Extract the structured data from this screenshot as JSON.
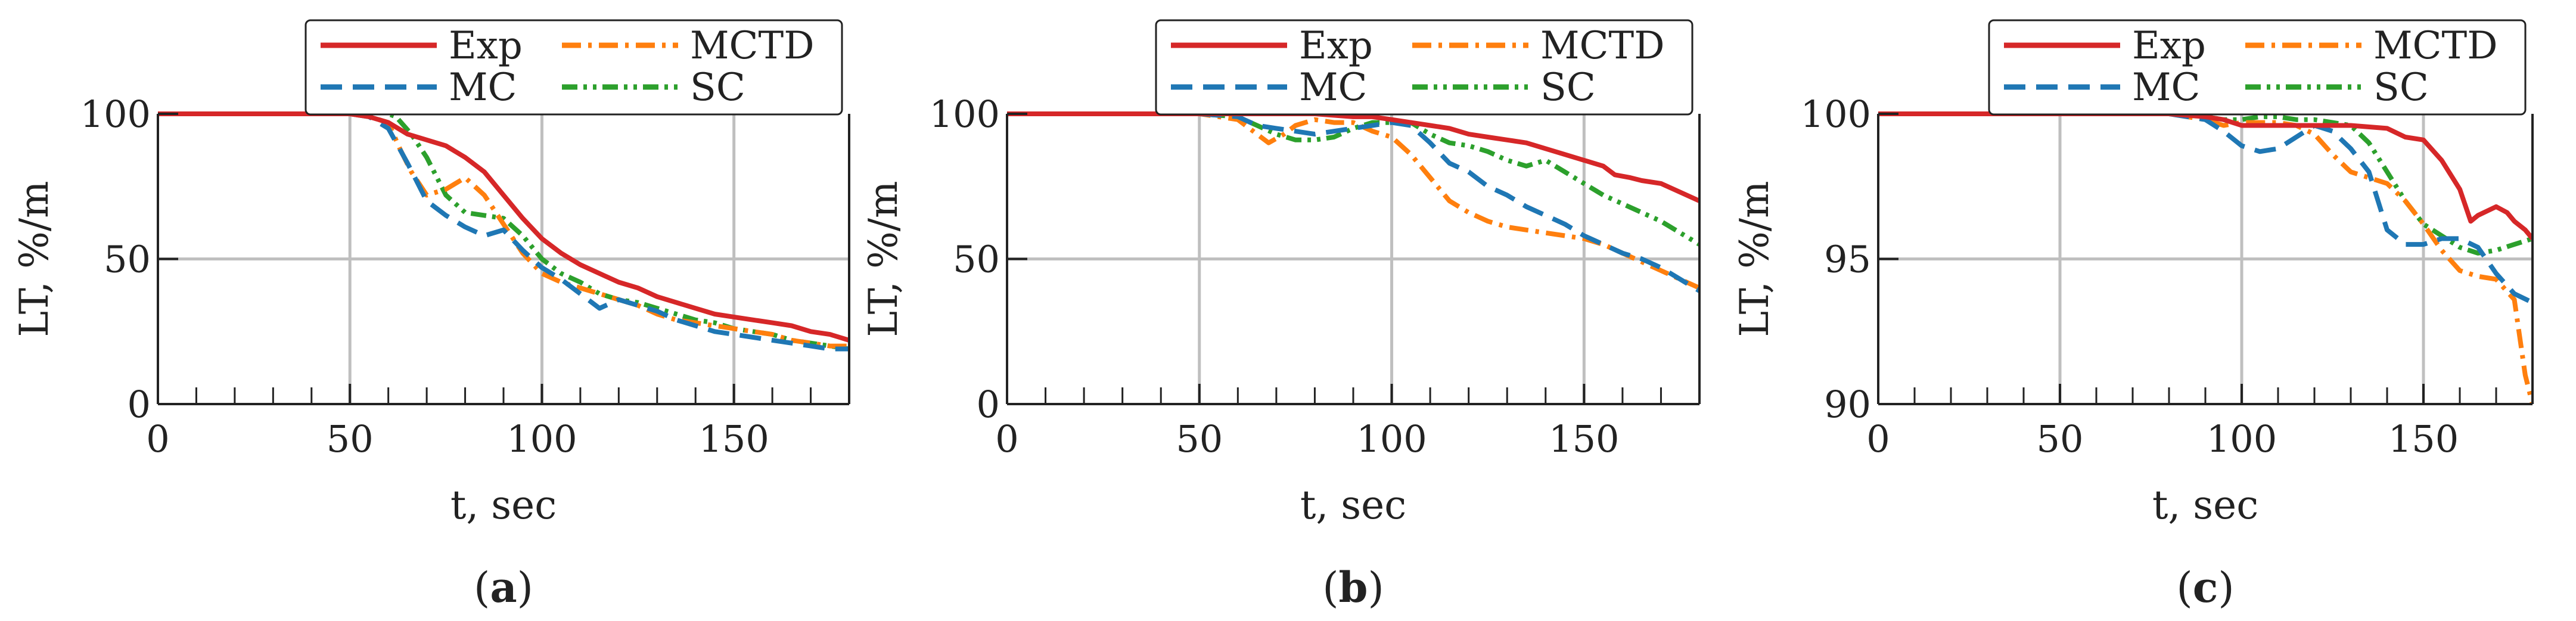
{
  "series_styles": {
    "Exp": {
      "color": "#d62728",
      "dash": "none"
    },
    "MC": {
      "color": "#1f77b4",
      "dash": "36,18"
    },
    "MCTD": {
      "color": "#ff7f0e",
      "dash": "32,12,6,12"
    },
    "SC": {
      "color": "#2ca02c",
      "dash": "26,10,6,10,6,10"
    }
  },
  "chart_data": [
    {
      "type": "line",
      "panel_label": "a",
      "xlabel": "t, sec",
      "ylabel": "LT, %/m",
      "xlim": [
        0,
        180
      ],
      "ylim": [
        0,
        100
      ],
      "xticks": [
        0,
        50,
        100,
        150
      ],
      "yticks": [
        0,
        50,
        100
      ],
      "grid": true,
      "legend": "top, outside",
      "series": [
        {
          "name": "Exp",
          "x": [
            0,
            20,
            40,
            50,
            55,
            60,
            65,
            70,
            75,
            80,
            85,
            90,
            95,
            100,
            105,
            110,
            115,
            120,
            125,
            130,
            135,
            140,
            145,
            150,
            155,
            160,
            165,
            170,
            175,
            180
          ],
          "y": [
            100,
            100,
            100,
            100,
            99,
            97,
            93,
            91,
            89,
            85,
            80,
            72,
            64,
            57,
            52,
            48,
            45,
            42,
            40,
            37,
            35,
            33,
            31,
            30,
            29,
            28,
            27,
            25,
            24,
            22
          ]
        },
        {
          "name": "MC",
          "x": [
            0,
            20,
            40,
            50,
            55,
            60,
            65,
            70,
            75,
            80,
            85,
            90,
            95,
            100,
            105,
            110,
            115,
            120,
            125,
            130,
            135,
            140,
            145,
            150,
            155,
            160,
            165,
            170,
            175,
            180
          ],
          "y": [
            100,
            100,
            100,
            100,
            99,
            95,
            83,
            70,
            65,
            61,
            58,
            60,
            53,
            47,
            43,
            38,
            33,
            36,
            34,
            32,
            29,
            27,
            25,
            24,
            23,
            22,
            21,
            20,
            19,
            19
          ]
        },
        {
          "name": "MCTD",
          "x": [
            0,
            20,
            30,
            40,
            50,
            55,
            60,
            63,
            66,
            70,
            75,
            80,
            85,
            90,
            95,
            100,
            105,
            110,
            115,
            120,
            125,
            130,
            135,
            140,
            145,
            150,
            155,
            160,
            165,
            170,
            175,
            180
          ],
          "y": [
            100,
            100,
            100,
            100,
            100,
            99,
            97,
            88,
            80,
            72,
            74,
            78,
            72,
            62,
            52,
            45,
            42,
            40,
            38,
            36,
            34,
            31,
            29,
            28,
            27,
            26,
            25,
            24,
            22,
            21,
            20,
            20
          ]
        },
        {
          "name": "SC",
          "x": [
            0,
            20,
            40,
            50,
            55,
            58,
            62,
            66,
            70,
            75,
            80,
            85,
            90,
            95,
            100,
            105,
            110,
            115,
            120,
            125,
            130,
            135,
            140,
            145,
            150,
            155,
            160,
            165,
            170,
            175,
            180
          ],
          "y": [
            100,
            100,
            100,
            100,
            100,
            101,
            99,
            93,
            85,
            72,
            66,
            65,
            64,
            58,
            50,
            45,
            42,
            38,
            36,
            35,
            33,
            31,
            29,
            28,
            26,
            25,
            24,
            22,
            21,
            20,
            19
          ]
        }
      ]
    },
    {
      "type": "line",
      "panel_label": "b",
      "xlabel": "t, sec",
      "ylabel": "LT, %/m",
      "xlim": [
        0,
        180
      ],
      "ylim": [
        0,
        100
      ],
      "xticks": [
        0,
        50,
        100,
        150
      ],
      "yticks": [
        0,
        50,
        100
      ],
      "grid": true,
      "legend": "top, outside",
      "series": [
        {
          "name": "Exp",
          "x": [
            0,
            20,
            40,
            60,
            80,
            90,
            95,
            100,
            105,
            110,
            115,
            120,
            125,
            130,
            135,
            140,
            145,
            150,
            155,
            158,
            162,
            165,
            170,
            175,
            180
          ],
          "y": [
            100,
            100,
            100,
            100,
            100,
            99,
            99,
            98,
            97,
            96,
            95,
            93,
            92,
            91,
            90,
            88,
            86,
            84,
            82,
            79,
            78,
            77,
            76,
            73,
            70
          ]
        },
        {
          "name": "MC",
          "x": [
            0,
            20,
            40,
            50,
            60,
            65,
            70,
            75,
            80,
            85,
            90,
            95,
            100,
            105,
            110,
            115,
            120,
            125,
            130,
            135,
            140,
            145,
            150,
            155,
            160,
            165,
            170,
            175,
            180
          ],
          "y": [
            100,
            100,
            100,
            100,
            99,
            96,
            95,
            94,
            93,
            94,
            95,
            96,
            97,
            96,
            90,
            83,
            80,
            75,
            72,
            68,
            65,
            62,
            58,
            55,
            52,
            50,
            47,
            43,
            39
          ]
        },
        {
          "name": "MCTD",
          "x": [
            0,
            20,
            40,
            50,
            60,
            65,
            68,
            72,
            75,
            80,
            85,
            90,
            95,
            100,
            105,
            110,
            115,
            120,
            125,
            130,
            135,
            140,
            145,
            150,
            155,
            160,
            165,
            170,
            175,
            180
          ],
          "y": [
            100,
            100,
            100,
            100,
            98,
            93,
            90,
            93,
            96,
            98,
            97,
            97,
            94,
            92,
            86,
            78,
            70,
            66,
            63,
            61,
            60,
            59,
            58,
            57,
            55,
            52,
            49,
            46,
            43,
            40
          ]
        },
        {
          "name": "SC",
          "x": [
            0,
            20,
            40,
            50,
            60,
            65,
            70,
            75,
            80,
            85,
            90,
            95,
            100,
            105,
            110,
            115,
            120,
            125,
            130,
            135,
            140,
            145,
            150,
            155,
            160,
            165,
            170,
            175,
            180
          ],
          "y": [
            100,
            100,
            100,
            100,
            99,
            96,
            93,
            91,
            91,
            92,
            95,
            97,
            97,
            97,
            93,
            90,
            89,
            87,
            84,
            82,
            84,
            80,
            76,
            72,
            69,
            66,
            63,
            59,
            55
          ]
        }
      ]
    },
    {
      "type": "line",
      "panel_label": "c",
      "xlabel": "t, sec",
      "ylabel": "LT, %/m",
      "xlim": [
        0,
        180
      ],
      "ylim": [
        90,
        100
      ],
      "xticks": [
        0,
        50,
        100,
        150
      ],
      "yticks": [
        90,
        95,
        100
      ],
      "grid": true,
      "legend": "top, outside",
      "series": [
        {
          "name": "Exp",
          "x": [
            0,
            20,
            40,
            60,
            80,
            90,
            95,
            100,
            110,
            120,
            130,
            140,
            145,
            150,
            155,
            160,
            163,
            165,
            170,
            173,
            175,
            178,
            180
          ],
          "y": [
            100,
            100,
            100,
            100,
            100,
            99.9,
            99.8,
            99.6,
            99.6,
            99.6,
            99.6,
            99.5,
            99.2,
            99.1,
            98.4,
            97.4,
            96.3,
            96.5,
            96.8,
            96.6,
            96.3,
            96.0,
            95.7
          ]
        },
        {
          "name": "MC",
          "x": [
            0,
            20,
            40,
            60,
            80,
            90,
            95,
            100,
            105,
            110,
            115,
            120,
            125,
            130,
            135,
            140,
            145,
            150,
            155,
            160,
            165,
            170,
            175,
            180
          ],
          "y": [
            100,
            100,
            100,
            100,
            100,
            99.8,
            99.4,
            98.9,
            98.7,
            98.8,
            99.2,
            99.6,
            99.4,
            98.8,
            98.0,
            96.0,
            95.5,
            95.5,
            95.7,
            95.7,
            95.4,
            94.5,
            93.8,
            93.5
          ]
        },
        {
          "name": "MCTD",
          "x": [
            0,
            20,
            40,
            60,
            80,
            90,
            95,
            100,
            105,
            110,
            115,
            120,
            125,
            130,
            135,
            140,
            145,
            150,
            155,
            160,
            165,
            170,
            175,
            178,
            180
          ],
          "y": [
            100,
            100,
            100,
            100,
            100,
            99.8,
            99.6,
            99.7,
            99.7,
            99.7,
            99.6,
            99.3,
            98.6,
            98.0,
            97.8,
            97.6,
            97.0,
            96.2,
            95.3,
            94.6,
            94.4,
            94.3,
            93.6,
            91.0,
            90.0
          ]
        },
        {
          "name": "SC",
          "x": [
            0,
            20,
            40,
            60,
            80,
            90,
            95,
            100,
            105,
            110,
            115,
            120,
            125,
            130,
            135,
            140,
            145,
            150,
            155,
            160,
            165,
            170,
            175,
            180
          ],
          "y": [
            100,
            100,
            100,
            100,
            100,
            99.9,
            99.8,
            99.8,
            99.9,
            99.9,
            99.8,
            99.8,
            99.7,
            99.6,
            99.0,
            98.0,
            97.0,
            96.2,
            95.8,
            95.4,
            95.2,
            95.3,
            95.5,
            95.7
          ]
        }
      ]
    }
  ]
}
